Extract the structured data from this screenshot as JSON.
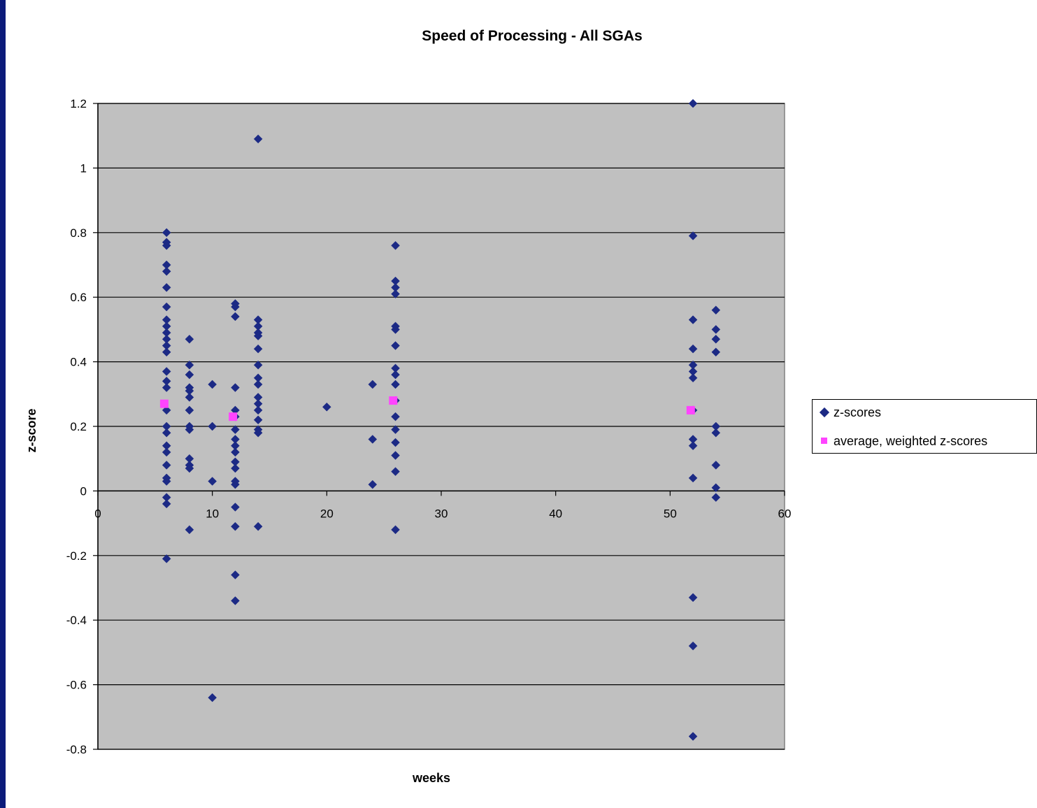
{
  "chart_data": {
    "type": "scatter",
    "title": "Speed of Processing - All SGAs",
    "xlabel": "weeks",
    "ylabel": "z-score",
    "xlim": [
      0,
      60
    ],
    "ylim": [
      -0.8,
      1.2
    ],
    "x_ticks": [
      0,
      10,
      20,
      30,
      40,
      50,
      60
    ],
    "y_ticks": [
      -0.8,
      -0.6,
      -0.4,
      -0.2,
      0,
      0.2,
      0.4,
      0.6,
      0.8,
      1,
      1.2
    ],
    "grid": true,
    "legend_position": "right",
    "series": [
      {
        "name": "z-scores",
        "marker": "diamond",
        "color": "#1c2a85",
        "points": [
          [
            6,
            0.8
          ],
          [
            6,
            0.77
          ],
          [
            6,
            0.76
          ],
          [
            6,
            0.7
          ],
          [
            6,
            0.68
          ],
          [
            6,
            0.63
          ],
          [
            6,
            0.57
          ],
          [
            6,
            0.53
          ],
          [
            6,
            0.51
          ],
          [
            6,
            0.49
          ],
          [
            6,
            0.47
          ],
          [
            6,
            0.45
          ],
          [
            6,
            0.43
          ],
          [
            6,
            0.37
          ],
          [
            6,
            0.34
          ],
          [
            6,
            0.32
          ],
          [
            6,
            0.25
          ],
          [
            6,
            0.2
          ],
          [
            6,
            0.18
          ],
          [
            6,
            0.14
          ],
          [
            6,
            0.12
          ],
          [
            6,
            0.08
          ],
          [
            6,
            0.04
          ],
          [
            6,
            0.03
          ],
          [
            6,
            -0.02
          ],
          [
            6,
            -0.04
          ],
          [
            6,
            -0.21
          ],
          [
            8,
            0.47
          ],
          [
            8,
            0.39
          ],
          [
            8,
            0.36
          ],
          [
            8,
            0.32
          ],
          [
            8,
            0.31
          ],
          [
            8,
            0.29
          ],
          [
            8,
            0.25
          ],
          [
            8,
            0.2
          ],
          [
            8,
            0.19
          ],
          [
            8,
            0.1
          ],
          [
            8,
            0.08
          ],
          [
            8,
            0.07
          ],
          [
            8,
            -0.12
          ],
          [
            10,
            0.33
          ],
          [
            10,
            0.2
          ],
          [
            10,
            0.03
          ],
          [
            10,
            -0.64
          ],
          [
            12,
            0.58
          ],
          [
            12,
            0.57
          ],
          [
            12,
            0.54
          ],
          [
            12,
            0.32
          ],
          [
            12,
            0.25
          ],
          [
            12,
            0.23
          ],
          [
            12,
            0.19
          ],
          [
            12,
            0.16
          ],
          [
            12,
            0.14
          ],
          [
            12,
            0.12
          ],
          [
            12,
            0.09
          ],
          [
            12,
            0.07
          ],
          [
            12,
            0.03
          ],
          [
            12,
            0.02
          ],
          [
            12,
            -0.05
          ],
          [
            12,
            -0.11
          ],
          [
            12,
            -0.26
          ],
          [
            12,
            -0.34
          ],
          [
            14,
            1.09
          ],
          [
            14,
            0.53
          ],
          [
            14,
            0.51
          ],
          [
            14,
            0.49
          ],
          [
            14,
            0.48
          ],
          [
            14,
            0.44
          ],
          [
            14,
            0.39
          ],
          [
            14,
            0.35
          ],
          [
            14,
            0.33
          ],
          [
            14,
            0.29
          ],
          [
            14,
            0.27
          ],
          [
            14,
            0.25
          ],
          [
            14,
            0.22
          ],
          [
            14,
            0.19
          ],
          [
            14,
            0.18
          ],
          [
            14,
            -0.11
          ],
          [
            20,
            0.26
          ],
          [
            24,
            0.33
          ],
          [
            24,
            0.16
          ],
          [
            24,
            0.02
          ],
          [
            26,
            0.76
          ],
          [
            26,
            0.65
          ],
          [
            26,
            0.63
          ],
          [
            26,
            0.61
          ],
          [
            26,
            0.51
          ],
          [
            26,
            0.5
          ],
          [
            26,
            0.45
          ],
          [
            26,
            0.38
          ],
          [
            26,
            0.36
          ],
          [
            26,
            0.33
          ],
          [
            26,
            0.28
          ],
          [
            26,
            0.23
          ],
          [
            26,
            0.19
          ],
          [
            26,
            0.15
          ],
          [
            26,
            0.11
          ],
          [
            26,
            0.06
          ],
          [
            26,
            -0.12
          ],
          [
            52,
            1.2
          ],
          [
            52,
            0.79
          ],
          [
            52,
            0.53
          ],
          [
            52,
            0.44
          ],
          [
            52,
            0.39
          ],
          [
            52,
            0.37
          ],
          [
            52,
            0.35
          ],
          [
            52,
            0.25
          ],
          [
            52,
            0.16
          ],
          [
            52,
            0.14
          ],
          [
            52,
            0.04
          ],
          [
            52,
            -0.33
          ],
          [
            52,
            -0.48
          ],
          [
            52,
            -0.76
          ],
          [
            54,
            0.56
          ],
          [
            54,
            0.5
          ],
          [
            54,
            0.47
          ],
          [
            54,
            0.43
          ],
          [
            54,
            0.2
          ],
          [
            54,
            0.18
          ],
          [
            54,
            0.08
          ],
          [
            54,
            0.01
          ],
          [
            54,
            -0.02
          ]
        ]
      },
      {
        "name": "average, weighted z-scores",
        "marker": "square",
        "color": "#ff44ff",
        "points": [
          [
            5.8,
            0.27
          ],
          [
            11.8,
            0.23
          ],
          [
            25.8,
            0.28
          ],
          [
            51.8,
            0.25
          ]
        ]
      }
    ]
  }
}
